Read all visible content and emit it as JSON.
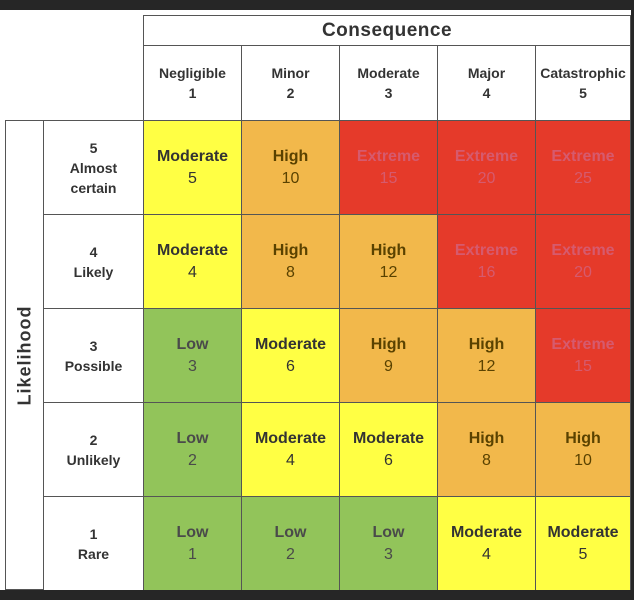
{
  "consequence_title": "Consequence",
  "likelihood_title": "Likelihood",
  "colors": {
    "Low": "#92c45a",
    "Moderate": "#ffff44",
    "High": "#f2b84b",
    "Extreme": "#e53a2a"
  },
  "text_colors": {
    "Low": "#4a4a4a",
    "Moderate": "#333333",
    "High": "#5a4200",
    "Extreme": "#d65a6e"
  },
  "columns": [
    {
      "name": "Negligible",
      "score": "1"
    },
    {
      "name": "Minor",
      "score": "2"
    },
    {
      "name": "Moderate",
      "score": "3"
    },
    {
      "name": "Major",
      "score": "4"
    },
    {
      "name": "Catastrophic",
      "score": "5"
    }
  ],
  "rows": [
    {
      "score": "5",
      "name_lines": [
        "Almost",
        "certain"
      ],
      "cells": [
        {
          "level": "Moderate",
          "value": "5"
        },
        {
          "level": "High",
          "value": "10"
        },
        {
          "level": "Extreme",
          "value": "15"
        },
        {
          "level": "Extreme",
          "value": "20"
        },
        {
          "level": "Extreme",
          "value": "25"
        }
      ]
    },
    {
      "score": "4",
      "name_lines": [
        "Likely"
      ],
      "cells": [
        {
          "level": "Moderate",
          "value": "4"
        },
        {
          "level": "High",
          "value": "8"
        },
        {
          "level": "High",
          "value": "12"
        },
        {
          "level": "Extreme",
          "value": "16"
        },
        {
          "level": "Extreme",
          "value": "20"
        }
      ]
    },
    {
      "score": "3",
      "name_lines": [
        "Possible"
      ],
      "cells": [
        {
          "level": "Low",
          "value": "3"
        },
        {
          "level": "Moderate",
          "value": "6"
        },
        {
          "level": "High",
          "value": "9"
        },
        {
          "level": "High",
          "value": "12"
        },
        {
          "level": "Extreme",
          "value": "15"
        }
      ]
    },
    {
      "score": "2",
      "name_lines": [
        "Unlikely"
      ],
      "cells": [
        {
          "level": "Low",
          "value": "2"
        },
        {
          "level": "Moderate",
          "value": "4"
        },
        {
          "level": "Moderate",
          "value": "6"
        },
        {
          "level": "High",
          "value": "8"
        },
        {
          "level": "High",
          "value": "10"
        }
      ]
    },
    {
      "score": "1",
      "name_lines": [
        "Rare"
      ],
      "cells": [
        {
          "level": "Low",
          "value": "1"
        },
        {
          "level": "Low",
          "value": "2"
        },
        {
          "level": "Low",
          "value": "3"
        },
        {
          "level": "Moderate",
          "value": "4"
        },
        {
          "level": "Moderate",
          "value": "5"
        }
      ]
    }
  ]
}
